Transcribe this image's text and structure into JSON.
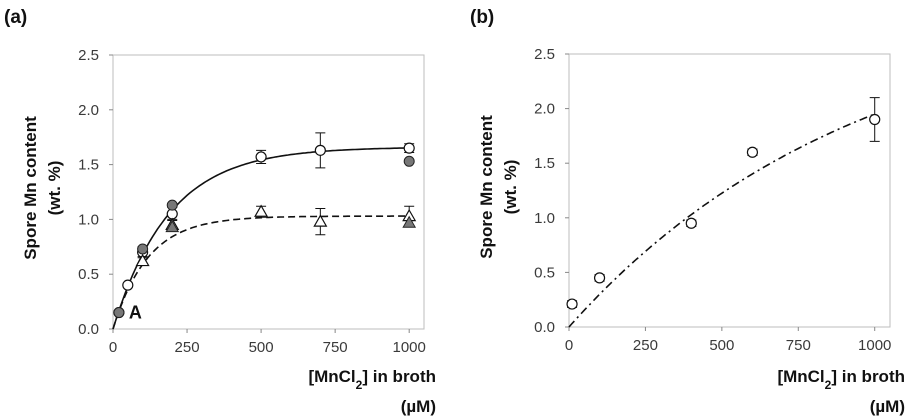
{
  "chart_data": [
    {
      "panel_label": "(a)",
      "type": "scatter",
      "xlabel": "[MnCl",
      "xlabel_sub": "2",
      "xlabel_rest": "] in broth",
      "xlabel_unit": "(µM)",
      "ylabel_line1": "Spore Mn content",
      "ylabel_line2": "(wt. %)",
      "xlim": [
        0,
        1050
      ],
      "ylim": [
        0,
        2.5
      ],
      "xticks": [
        "0",
        "250",
        "500",
        "750",
        "1000"
      ],
      "yticks": [
        "0.0",
        "0.5",
        "1.0",
        "1.5",
        "2.0",
        "2.5"
      ],
      "annotation": "A",
      "series": [
        {
          "marker": "open-circle",
          "points": [
            {
              "x": 20,
              "y": 0.15,
              "err": 0
            },
            {
              "x": 50,
              "y": 0.4,
              "err": 0
            },
            {
              "x": 100,
              "y": 0.7,
              "err": 0.05
            },
            {
              "x": 200,
              "y": 1.05,
              "err": 0.06
            },
            {
              "x": 500,
              "y": 1.57,
              "err": 0.06
            },
            {
              "x": 700,
              "y": 1.63,
              "err": 0.16
            },
            {
              "x": 1000,
              "y": 1.65,
              "err": 0.04
            }
          ]
        },
        {
          "marker": "filled-circle",
          "points": [
            {
              "x": 20,
              "y": 0.15
            },
            {
              "x": 100,
              "y": 0.73
            },
            {
              "x": 200,
              "y": 1.13
            },
            {
              "x": 1000,
              "y": 1.53
            }
          ]
        },
        {
          "marker": "open-triangle",
          "points": [
            {
              "x": 100,
              "y": 0.62,
              "err": 0.04
            },
            {
              "x": 200,
              "y": 0.95,
              "err": 0.05
            },
            {
              "x": 500,
              "y": 1.07,
              "err": 0.05
            },
            {
              "x": 700,
              "y": 0.98,
              "err": 0.12
            },
            {
              "x": 1000,
              "y": 1.03,
              "err": 0.09
            }
          ]
        },
        {
          "marker": "filled-triangle",
          "points": [
            {
              "x": 200,
              "y": 0.93
            },
            {
              "x": 1000,
              "y": 0.97
            }
          ]
        }
      ],
      "fits": [
        {
          "style": "solid",
          "ymax": 1.66,
          "k": 0.0053
        },
        {
          "style": "dashed",
          "ymax": 1.03,
          "k": 0.0085
        }
      ]
    },
    {
      "panel_label": "(b)",
      "type": "scatter",
      "xlabel": "[MnCl",
      "xlabel_sub": "2",
      "xlabel_rest": "] in broth",
      "xlabel_unit": "(µM)",
      "ylabel_line1": "Spore Mn content",
      "ylabel_line2": "(wt. %)",
      "xlim": [
        0,
        1050
      ],
      "ylim": [
        0,
        2.5
      ],
      "xticks": [
        "0",
        "250",
        "500",
        "750",
        "1000"
      ],
      "yticks": [
        "0.0",
        "0.5",
        "1.0",
        "1.5",
        "2.0",
        "2.5"
      ],
      "series": [
        {
          "marker": "open-circle",
          "points": [
            {
              "x": 10,
              "y": 0.21,
              "err": 0.03
            },
            {
              "x": 100,
              "y": 0.45,
              "err": 0.03
            },
            {
              "x": 400,
              "y": 0.95,
              "err": 0.03
            },
            {
              "x": 600,
              "y": 1.6,
              "err": 0.03
            },
            {
              "x": 1000,
              "y": 1.9,
              "err": 0.2
            }
          ]
        }
      ],
      "fits": [
        {
          "style": "dash-dot",
          "ymax": 3.0,
          "k": 0.00105
        }
      ]
    }
  ]
}
